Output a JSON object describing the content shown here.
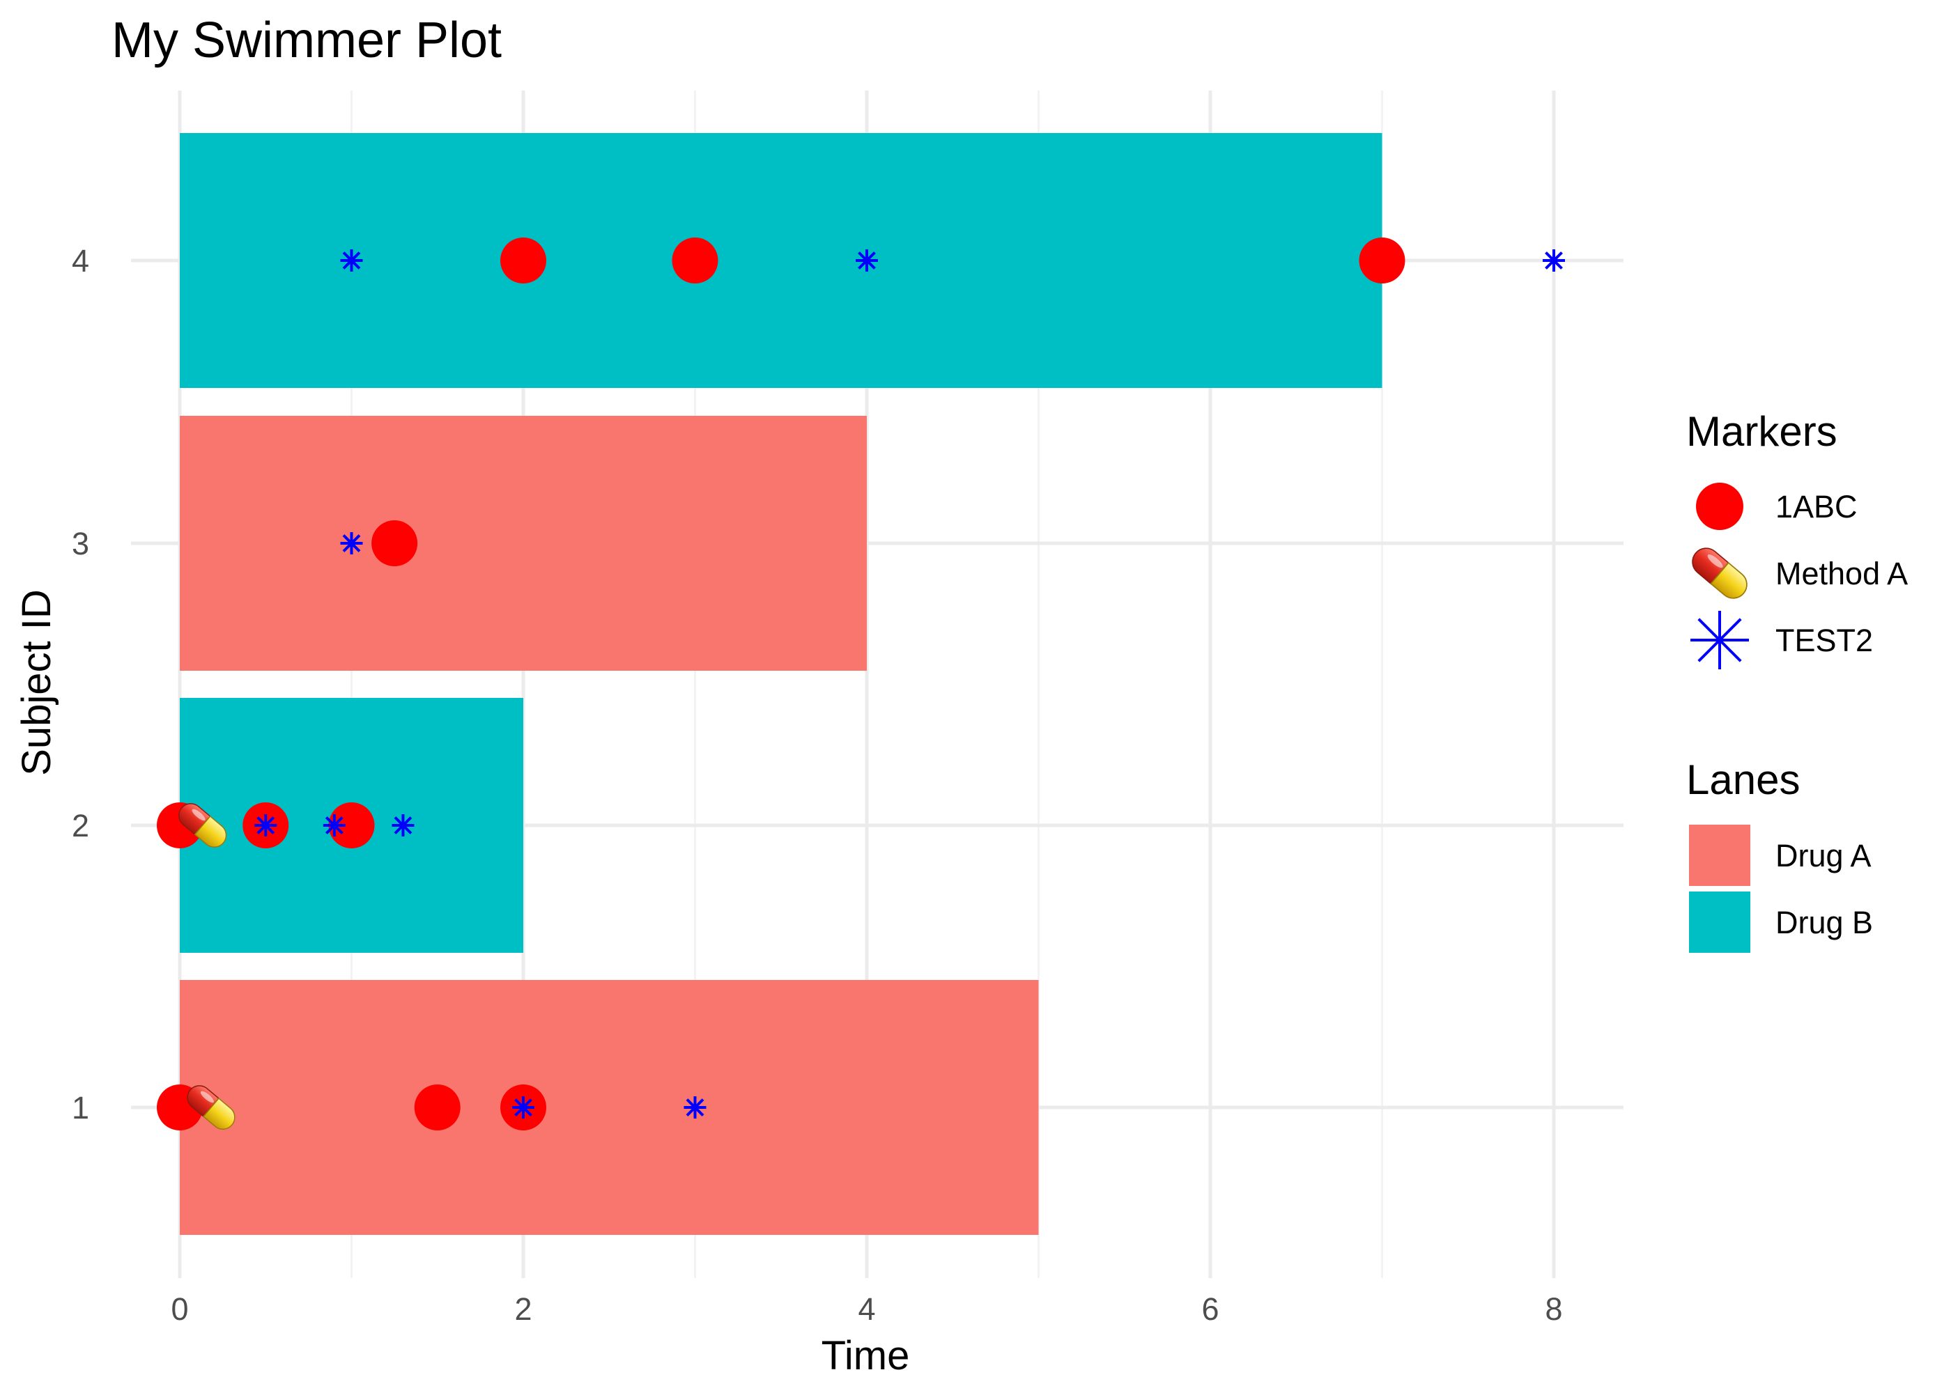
{
  "chart_data": {
    "type": "swimmer",
    "title": "My Swimmer Plot",
    "xlabel": "Time",
    "ylabel": "Subject ID",
    "xlim": [
      0,
      8
    ],
    "xticks": [
      0,
      2,
      4,
      6,
      8
    ],
    "yticks": [
      "1",
      "2",
      "3",
      "4"
    ],
    "grid": true,
    "lanes": [
      {
        "subject": "1",
        "end": 5,
        "lane": "Drug A"
      },
      {
        "subject": "2",
        "end": 2,
        "lane": "Drug B"
      },
      {
        "subject": "3",
        "end": 4,
        "lane": "Drug A"
      },
      {
        "subject": "4",
        "end": 7,
        "lane": "Drug B"
      }
    ],
    "markers": [
      {
        "subject": "1",
        "x": 0,
        "marker": "1ABC"
      },
      {
        "subject": "1",
        "x": 1.5,
        "marker": "1ABC"
      },
      {
        "subject": "1",
        "x": 2,
        "marker": "1ABC"
      },
      {
        "subject": "1",
        "x": 0.15,
        "marker": "Method A"
      },
      {
        "subject": "1",
        "x": 2,
        "marker": "TEST2"
      },
      {
        "subject": "1",
        "x": 3,
        "marker": "TEST2"
      },
      {
        "subject": "2",
        "x": 0,
        "marker": "1ABC"
      },
      {
        "subject": "2",
        "x": 0.5,
        "marker": "1ABC"
      },
      {
        "subject": "2",
        "x": 1,
        "marker": "1ABC"
      },
      {
        "subject": "2",
        "x": 0.1,
        "marker": "Method A"
      },
      {
        "subject": "2",
        "x": 0.5,
        "marker": "TEST2"
      },
      {
        "subject": "2",
        "x": 0.9,
        "marker": "TEST2"
      },
      {
        "subject": "2",
        "x": 1.3,
        "marker": "TEST2"
      },
      {
        "subject": "3",
        "x": 1.25,
        "marker": "1ABC"
      },
      {
        "subject": "3",
        "x": 1,
        "marker": "TEST2"
      },
      {
        "subject": "4",
        "x": 2,
        "marker": "1ABC"
      },
      {
        "subject": "4",
        "x": 3,
        "marker": "1ABC"
      },
      {
        "subject": "4",
        "x": 7,
        "marker": "1ABC"
      },
      {
        "subject": "4",
        "x": 1,
        "marker": "TEST2"
      },
      {
        "subject": "4",
        "x": 4,
        "marker": "TEST2"
      },
      {
        "subject": "4",
        "x": 8,
        "marker": "TEST2"
      }
    ],
    "legend": {
      "placement": "right",
      "markers_title": "Markers",
      "markers": [
        {
          "label": "1ABC",
          "shape": "circle",
          "color": "#ff0000"
        },
        {
          "label": "Method A",
          "shape": "pill-icon",
          "color": "#e8302a"
        },
        {
          "label": "TEST2",
          "shape": "asterisk",
          "color": "#0000ff"
        }
      ],
      "lanes_title": "Lanes",
      "lanes": [
        {
          "label": "Drug A",
          "color": "#f8766d"
        },
        {
          "label": "Drug B",
          "color": "#00bfc4"
        }
      ]
    }
  }
}
